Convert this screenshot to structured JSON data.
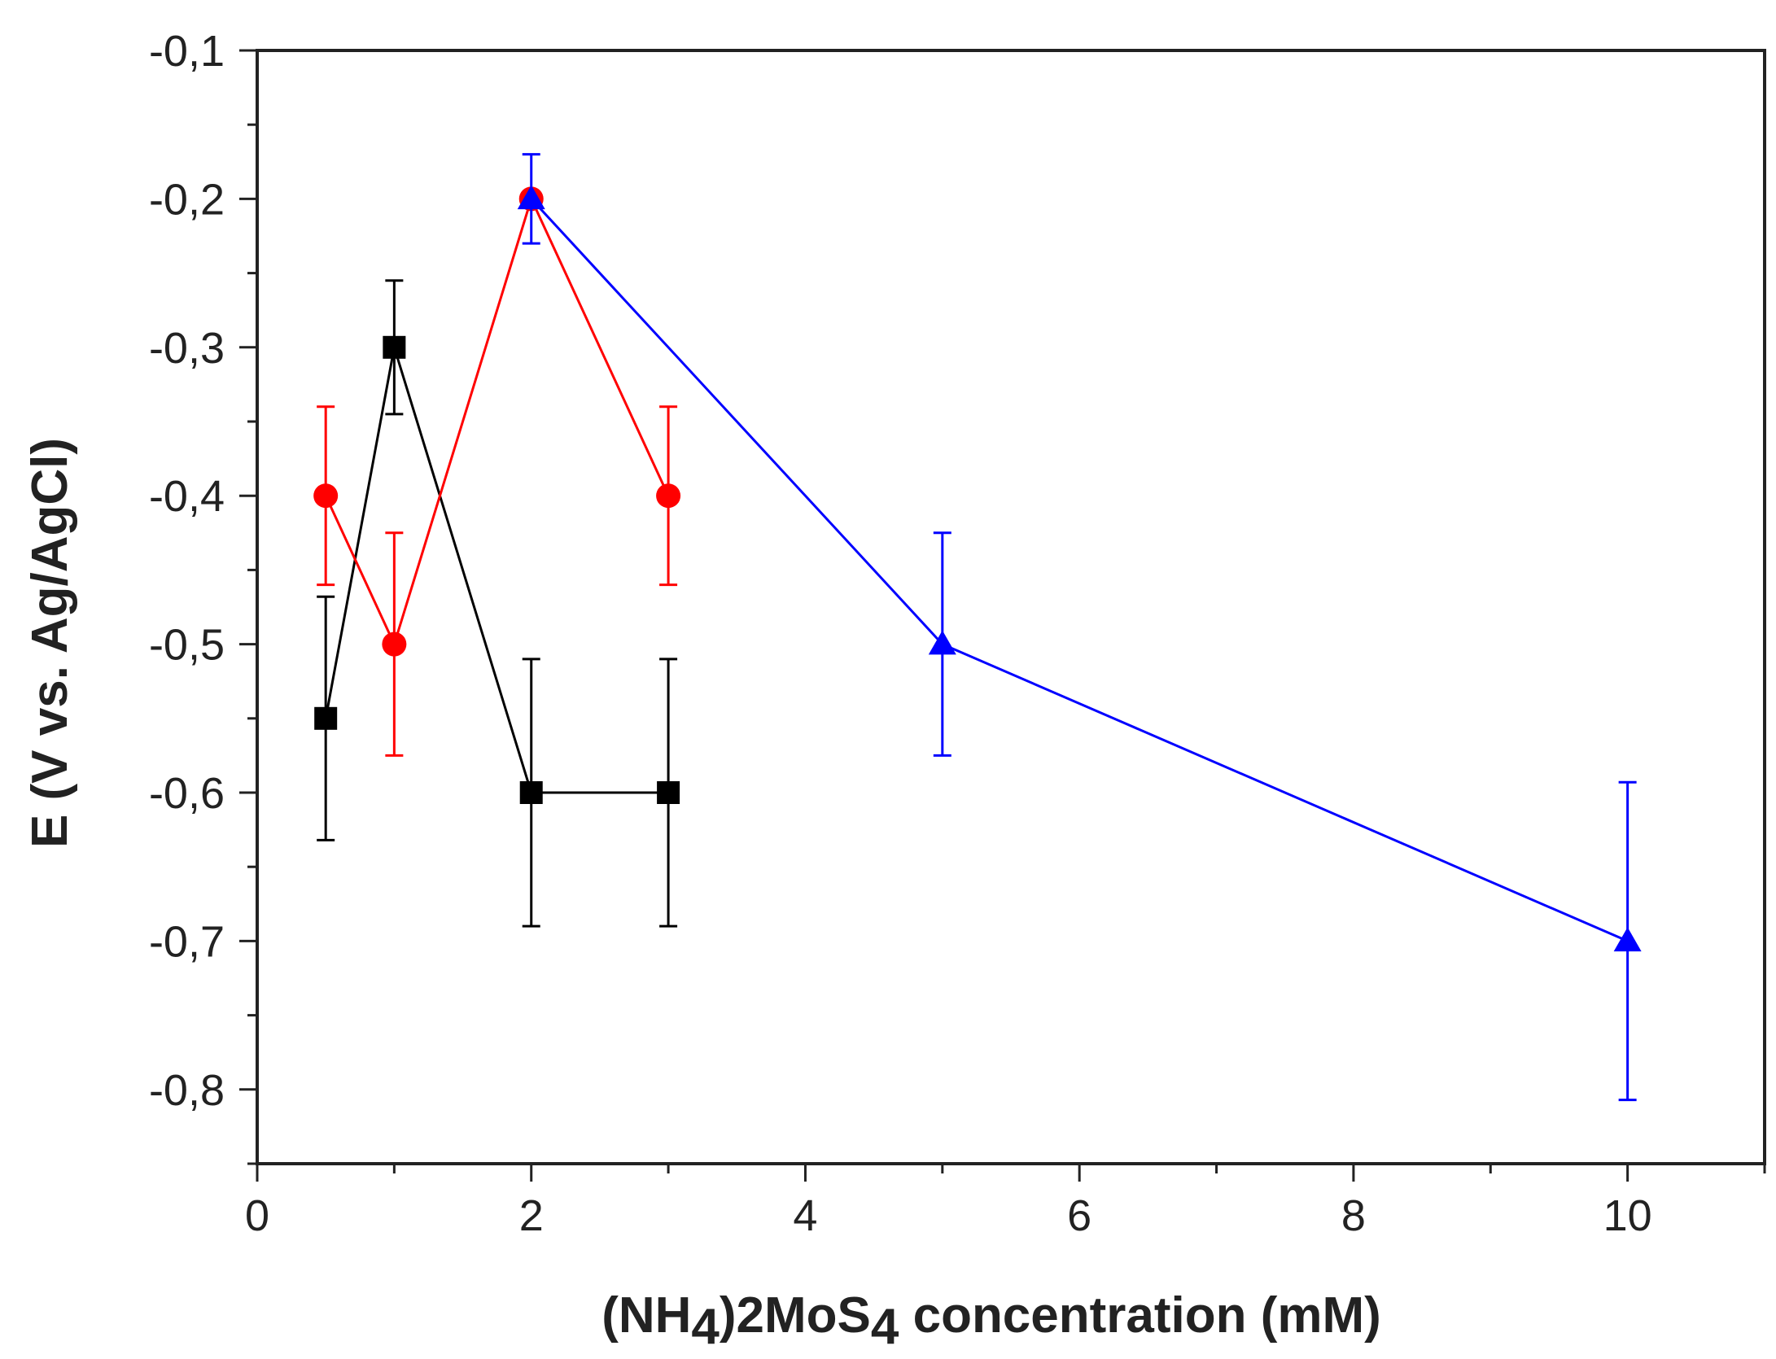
{
  "chart_data": {
    "type": "line",
    "title": "",
    "xlabel": {
      "parts": [
        {
          "text": "(NH",
          "shift": "none"
        },
        {
          "text": "4",
          "shift": "sub"
        },
        {
          "text": ")2MoS",
          "shift": "none"
        },
        {
          "text": "4",
          "shift": "sub"
        },
        {
          "text": " concentration (mM)",
          "shift": "none"
        }
      ]
    },
    "ylabel": "E (V vs. Ag/AgCl)",
    "xlim": [
      0,
      11
    ],
    "ylim": [
      -0.85,
      -0.1
    ],
    "x_ticks": [
      0,
      2,
      4,
      6,
      8,
      10
    ],
    "x_tick_labels": [
      "0",
      "2",
      "4",
      "6",
      "8",
      "10"
    ],
    "x_minor_step": 1,
    "y_ticks": [
      -0.8,
      -0.7,
      -0.6,
      -0.5,
      -0.4,
      -0.3,
      -0.2,
      -0.1
    ],
    "y_tick_labels": [
      "-0,8",
      "-0,7",
      "-0,6",
      "-0,5",
      "-0,4",
      "-0,3",
      "-0,2",
      "-0,1"
    ],
    "y_minor_step": 0.05,
    "grid": false,
    "series": [
      {
        "name": "black-square",
        "color": "#000000",
        "marker": "square",
        "x": [
          0.5,
          1,
          2,
          3
        ],
        "y": [
          -0.55,
          -0.3,
          -0.6,
          -0.6
        ],
        "err_low": [
          0.082,
          0.045,
          0.09,
          0.09
        ],
        "err_high": [
          0.082,
          0.045,
          0.09,
          0.09
        ]
      },
      {
        "name": "red-circle",
        "color": "#ff0000",
        "marker": "circle",
        "x": [
          0.5,
          1,
          2,
          3
        ],
        "y": [
          -0.4,
          -0.5,
          -0.2,
          -0.4
        ],
        "err_low": [
          0.06,
          0.075,
          0.0,
          0.06
        ],
        "err_high": [
          0.06,
          0.075,
          0.0,
          0.06
        ]
      },
      {
        "name": "blue-triangle",
        "color": "#0000ff",
        "marker": "triangle",
        "x": [
          2,
          5,
          10
        ],
        "y": [
          -0.2,
          -0.5,
          -0.7
        ],
        "err_low": [
          0.03,
          0.075,
          0.107
        ],
        "err_high": [
          0.03,
          0.075,
          0.107
        ]
      }
    ]
  }
}
